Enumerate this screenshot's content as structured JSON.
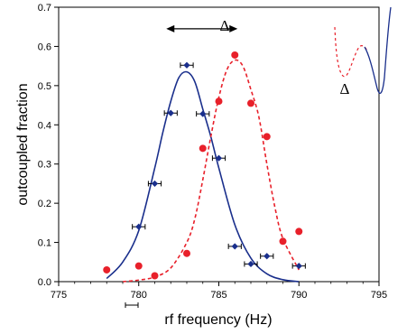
{
  "chart_data": {
    "type": "scatter",
    "title": "",
    "xlabel": "rf frequency (Hz)",
    "ylabel": "outcoupled fraction",
    "xlim": [
      775,
      795
    ],
    "ylim": [
      0,
      0.7
    ],
    "x_ticks": [
      775,
      780,
      785,
      790,
      795
    ],
    "y_ticks": [
      0,
      0.1,
      0.2,
      0.3,
      0.4,
      0.5,
      0.6,
      0.7
    ],
    "x_tick_labels": [
      "775",
      "780",
      "785",
      "790",
      "795"
    ],
    "y_tick_labels": [
      "0.0",
      "0.1",
      "0.2",
      "0.3",
      "0.4",
      "0.5",
      "0.6",
      "0.7"
    ],
    "grid": false,
    "series": [
      {
        "marker": "diamond",
        "color": "#1a2f8c",
        "points": [
          {
            "x": 780,
            "y": 0.14,
            "xerr": 0.4
          },
          {
            "x": 781,
            "y": 0.25,
            "xerr": 0.4
          },
          {
            "x": 782,
            "y": 0.43,
            "xerr": 0.4
          },
          {
            "x": 783,
            "y": 0.552,
            "xerr": 0.4
          },
          {
            "x": 784,
            "y": 0.428,
            "xerr": 0.4
          },
          {
            "x": 785,
            "y": 0.315,
            "xerr": 0.4
          },
          {
            "x": 786,
            "y": 0.09,
            "xerr": 0.4
          },
          {
            "x": 787,
            "y": 0.045,
            "xerr": 0.4
          },
          {
            "x": 788,
            "y": 0.065,
            "xerr": 0.4
          },
          {
            "x": 790,
            "y": 0.04,
            "xerr": 0.4
          }
        ]
      },
      {
        "marker": "circle",
        "color": "#e8202a",
        "points": [
          {
            "x": 778,
            "y": 0.03
          },
          {
            "x": 780,
            "y": 0.04
          },
          {
            "x": 781,
            "y": 0.015
          },
          {
            "x": 783,
            "y": 0.072
          },
          {
            "x": 784,
            "y": 0.34
          },
          {
            "x": 785,
            "y": 0.46
          },
          {
            "x": 786,
            "y": 0.578
          },
          {
            "x": 787,
            "y": 0.455
          },
          {
            "x": 788,
            "y": 0.37
          },
          {
            "x": 789,
            "y": 0.103
          },
          {
            "x": 790,
            "y": 0.128
          }
        ]
      },
      {
        "style": "solid-fit",
        "color": "#1a2f8c",
        "x": [
          778,
          779,
          780,
          781,
          781.5,
          782,
          782.5,
          783,
          783.5,
          784,
          784.5,
          785,
          786,
          787,
          788,
          789,
          790
        ],
        "y": [
          0.008,
          0.05,
          0.13,
          0.29,
          0.38,
          0.46,
          0.52,
          0.535,
          0.51,
          0.44,
          0.37,
          0.29,
          0.145,
          0.06,
          0.02,
          0.005,
          0.0
        ]
      },
      {
        "style": "dashed-fit",
        "color": "#e8202a",
        "x": [
          779,
          780,
          781,
          782,
          783,
          783.5,
          784,
          784.5,
          785,
          785.5,
          786,
          786.5,
          787,
          787.5,
          788,
          788.5,
          789,
          790
        ],
        "y": [
          0.0,
          0.004,
          0.012,
          0.035,
          0.1,
          0.16,
          0.26,
          0.37,
          0.47,
          0.54,
          0.565,
          0.55,
          0.49,
          0.42,
          0.3,
          0.19,
          0.11,
          0.03
        ]
      }
    ],
    "annotations": {
      "delta_label": "Δ",
      "inset_label": "Δ",
      "arrow_x_range": [
        782,
        786
      ],
      "arrow_y": 0.645
    }
  }
}
